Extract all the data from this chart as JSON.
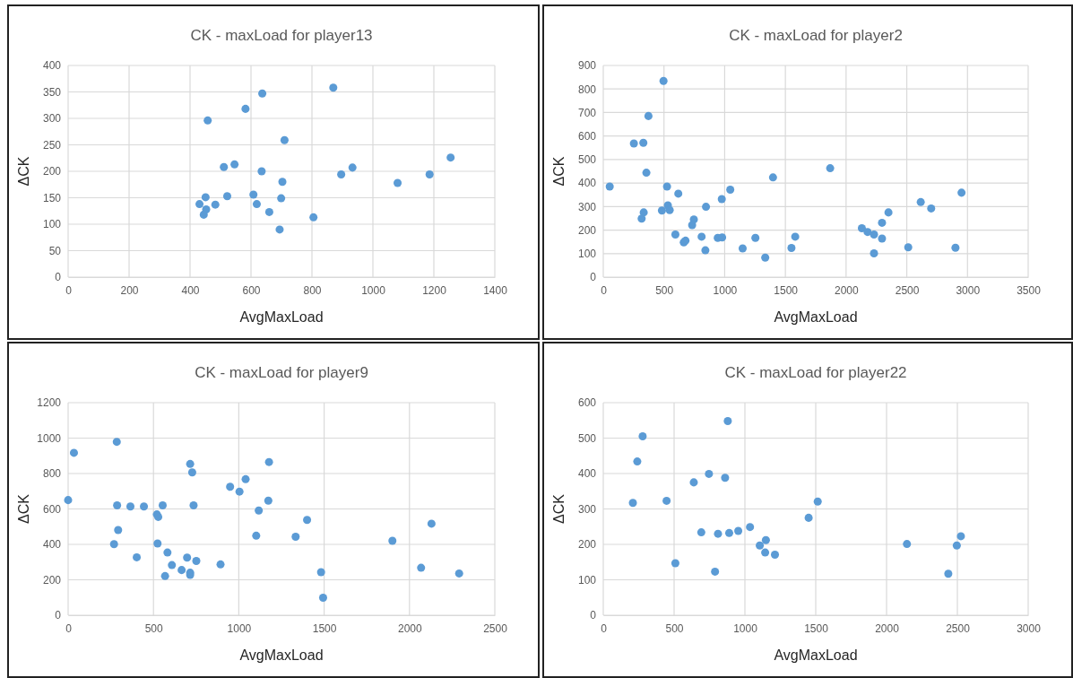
{
  "chart_data": [
    {
      "type": "scatter",
      "title": "CK - maxLoad for player13",
      "xlabel": "AvgMaxLoad",
      "ylabel": "ΔCK",
      "xlim": [
        0,
        1400
      ],
      "xticks": [
        0,
        200,
        400,
        600,
        800,
        1000,
        1200,
        1400
      ],
      "ylim": [
        0,
        400
      ],
      "yticks": [
        0,
        50,
        100,
        150,
        200,
        250,
        300,
        350,
        400
      ],
      "grid": true,
      "marker": "circle",
      "series": [
        {
          "color": "#5b9bd5",
          "x": [
            870,
            637,
            582,
            458,
            710,
            1255,
            546,
            511,
            933,
            635,
            896,
            1186,
            703,
            1081,
            608,
            522,
            451,
            699,
            431,
            619,
            483,
            453,
            660,
            445,
            805,
            694
          ],
          "values": [
            358,
            347,
            318,
            296,
            259,
            226,
            213,
            208,
            207,
            200,
            194,
            194,
            180,
            178,
            156,
            153,
            151,
            149,
            138,
            138,
            137,
            128,
            123,
            118,
            113,
            90
          ]
        }
      ]
    },
    {
      "type": "scatter",
      "title": "CK - maxLoad for player2",
      "xlabel": "AvgMaxLoad",
      "ylabel": "ΔCK",
      "xlim": [
        0,
        3500
      ],
      "xticks": [
        0,
        500,
        1000,
        1500,
        2000,
        2500,
        3000,
        3500
      ],
      "ylim": [
        0,
        900
      ],
      "yticks": [
        0,
        100,
        200,
        300,
        400,
        500,
        600,
        700,
        800,
        900
      ],
      "grid": true,
      "marker": "circle",
      "series": [
        {
          "color": "#5b9bd5",
          "x": [
            53,
            252,
            330,
            372,
            496,
            355,
            525,
            618,
            333,
            316,
            483,
            532,
            547,
            594,
            746,
            732,
            663,
            677,
            810,
            846,
            841,
            976,
            1046,
            943,
            979,
            1148,
            1253,
            1334,
            1398,
            1550,
            1581,
            1869,
            2130,
            2177,
            2230,
            2230,
            2296,
            2296,
            2349,
            2512,
            2615,
            2701,
            2901,
            2951
          ],
          "values": [
            385,
            568,
            571,
            685,
            834,
            444,
            385,
            355,
            275,
            249,
            283,
            305,
            285,
            181,
            245,
            221,
            148,
            155,
            172,
            299,
            114,
            332,
            372,
            167,
            169,
            122,
            167,
            83,
            424,
            124,
            172,
            463,
            208,
            192,
            181,
            101,
            231,
            164,
            275,
            127,
            319,
            292,
            125,
            359
          ]
        }
      ]
    },
    {
      "type": "scatter",
      "title": "CK - maxLoad for player9",
      "xlabel": "AvgMaxLoad",
      "ylabel": "ΔCK",
      "xlim": [
        0,
        2500
      ],
      "xticks": [
        0,
        500,
        1000,
        1500,
        2000,
        2500
      ],
      "ylim": [
        0,
        1200
      ],
      "yticks": [
        0,
        200,
        400,
        600,
        800,
        1000,
        1200
      ],
      "grid": true,
      "marker": "circle",
      "series": [
        {
          "color": "#5b9bd5",
          "x": [
            0,
            34,
            285,
            287,
            293,
            269,
            365,
            444,
            402,
            520,
            528,
            554,
            524,
            582,
            568,
            608,
            665,
            697,
            715,
            727,
            735,
            715,
            715,
            751,
            893,
            949,
            1004,
            1040,
            1177,
            1173,
            1117,
            1102,
            1333,
            1400,
            1482,
            1494,
            1900,
            2068,
            2129,
            2291
          ],
          "values": [
            650,
            917,
            979,
            620,
            481,
            401,
            614,
            614,
            327,
            569,
            555,
            620,
            405,
            354,
            221,
            283,
            255,
            325,
            854,
            806,
            620,
            240,
            228,
            306,
            287,
            725,
            698,
            768,
            865,
            647,
            591,
            449,
            443,
            538,
            243,
            99,
            420,
            268,
            517,
            236
          ]
        }
      ]
    },
    {
      "type": "scatter",
      "title": "CK - maxLoad for player22",
      "xlabel": "AvgMaxLoad",
      "ylabel": "ΔCK",
      "xlim": [
        0,
        3000
      ],
      "xticks": [
        0,
        500,
        1000,
        1500,
        2000,
        2500,
        3000
      ],
      "ylim": [
        0,
        600
      ],
      "yticks": [
        0,
        100,
        200,
        300,
        400,
        500,
        600
      ],
      "grid": true,
      "marker": "circle",
      "series": [
        {
          "color": "#5b9bd5",
          "x": [
            209,
            240,
            278,
            447,
            509,
            639,
            746,
            860,
            879,
            692,
            789,
            810,
            889,
            953,
            1036,
            1105,
            1148,
            1143,
            1212,
            1450,
            1514,
            2144,
            2436,
            2496,
            2525
          ],
          "values": [
            317,
            434,
            505,
            323,
            147,
            375,
            399,
            388,
            548,
            234,
            123,
            230,
            232,
            238,
            249,
            197,
            212,
            177,
            171,
            275,
            321,
            201,
            117,
            197,
            223
          ]
        }
      ]
    }
  ]
}
